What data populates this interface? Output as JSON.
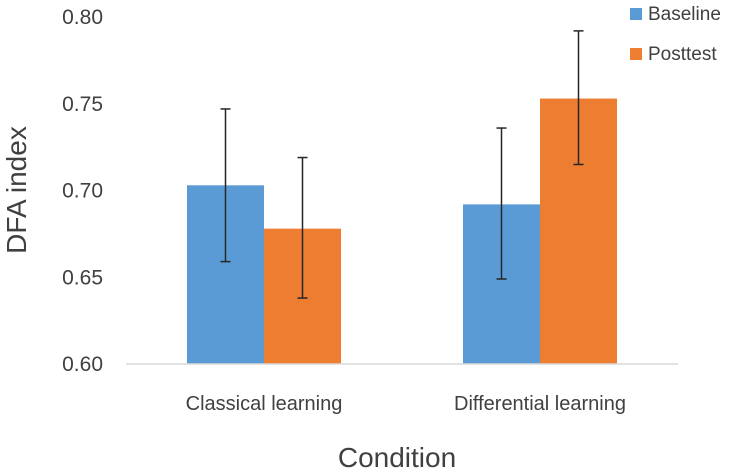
{
  "chart_data": {
    "type": "bar",
    "title": "",
    "xlabel": "Condition",
    "ylabel": "DFA index",
    "categories": [
      "Classical learning",
      "Differential learning"
    ],
    "series": [
      {
        "name": "Baseline",
        "color": "#5b9bd5",
        "values": [
          0.703,
          0.692
        ],
        "error_low": [
          0.659,
          0.649
        ],
        "error_high": [
          0.747,
          0.736
        ]
      },
      {
        "name": "Posttest",
        "color": "#ed7d31",
        "values": [
          0.678,
          0.753
        ],
        "error_low": [
          0.638,
          0.715
        ],
        "error_high": [
          0.719,
          0.792
        ]
      }
    ],
    "ylim": [
      0.6,
      0.8
    ],
    "yticks": [
      "0.60",
      "0.65",
      "0.70",
      "0.75",
      "0.80"
    ],
    "grid": false,
    "legend_position": "top-right"
  }
}
